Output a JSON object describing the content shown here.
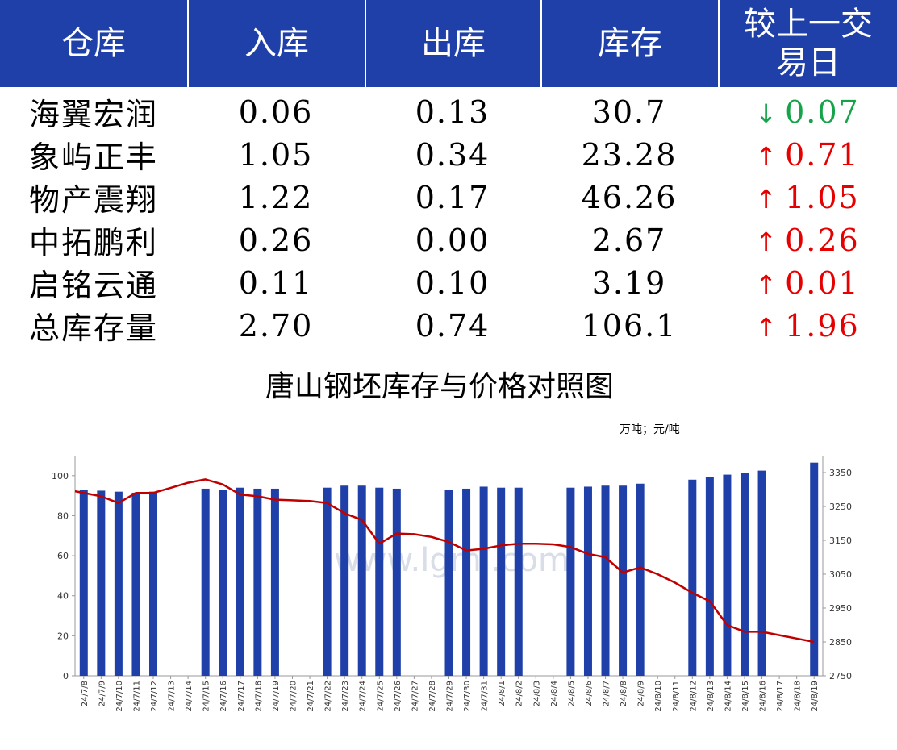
{
  "table": {
    "headers": [
      "仓库",
      "入库",
      "出库",
      "库存",
      "较上一交\n易日"
    ],
    "rows": [
      {
        "name": "海翼宏润",
        "in": "0.06",
        "out": "0.13",
        "stock": "30.7",
        "change": "0.07",
        "dir": "down"
      },
      {
        "name": "象屿正丰",
        "in": "1.05",
        "out": "0.34",
        "stock": "23.28",
        "change": "0.71",
        "dir": "up"
      },
      {
        "name": "物产震翔",
        "in": "1.22",
        "out": "0.17",
        "stock": "46.26",
        "change": "1.05",
        "dir": "up"
      },
      {
        "name": "中拓鹏利",
        "in": "0.26",
        "out": "0.00",
        "stock": "2.67",
        "change": "0.26",
        "dir": "up"
      },
      {
        "name": "启铭云通",
        "in": "0.11",
        "out": "0.10",
        "stock": "3.19",
        "change": "0.01",
        "dir": "up"
      },
      {
        "name": "总库存量",
        "in": "2.70",
        "out": "0.74",
        "stock": "106.1",
        "change": "1.96",
        "dir": "up"
      }
    ],
    "colors": {
      "header_bg": "#1f40a8",
      "up": "#e60000",
      "down": "#16a34a"
    }
  },
  "chart_data": {
    "type": "bar+line",
    "title": "唐山钢坯库存与价格对照图",
    "unit_label": "万吨；元/吨",
    "watermark": "www.lgmi.com",
    "categories": [
      "24/7/8",
      "24/7/9",
      "24/7/10",
      "24/7/11",
      "24/7/12",
      "24/7/13",
      "24/7/14",
      "24/7/15",
      "24/7/16",
      "24/7/17",
      "24/7/18",
      "24/7/19",
      "24/7/20",
      "24/7/21",
      "24/7/22",
      "24/7/23",
      "24/7/24",
      "24/7/25",
      "24/7/26",
      "24/7/27",
      "24/7/28",
      "24/7/29",
      "24/7/30",
      "24/7/31",
      "24/8/1",
      "24/8/2",
      "24/8/3",
      "24/8/4",
      "24/8/5",
      "24/8/6",
      "24/8/7",
      "24/8/8",
      "24/8/9",
      "24/8/10",
      "24/8/11",
      "24/8/12",
      "24/8/13",
      "24/8/14",
      "24/8/15",
      "24/8/16",
      "24/8/17",
      "24/8/18",
      "24/8/19"
    ],
    "series": [
      {
        "type": "bar",
        "axis": "left",
        "color": "#1f40a8",
        "values": [
          93,
          92.5,
          92,
          91.5,
          92,
          null,
          null,
          93.5,
          93,
          94,
          93.5,
          93.5,
          null,
          null,
          94,
          95,
          95,
          94,
          93.5,
          null,
          null,
          93,
          93.5,
          94.5,
          94,
          94,
          null,
          null,
          94,
          94.5,
          95,
          95,
          96,
          null,
          null,
          98,
          99.5,
          100.5,
          101.5,
          102.5,
          null,
          null,
          106.5
        ]
      },
      {
        "type": "line",
        "axis": "right",
        "color": "#c00000",
        "values": [
          3295,
          3280,
          3260,
          3290,
          3290,
          3305,
          3320,
          3330,
          3315,
          3285,
          3280,
          3270,
          3268,
          3266,
          3260,
          3230,
          3210,
          3140,
          3170,
          3168,
          3160,
          3145,
          3120,
          3125,
          3135,
          3140,
          3140,
          3138,
          3130,
          3110,
          3100,
          3055,
          3070,
          3050,
          3025,
          2995,
          2970,
          2900,
          2880,
          2880,
          2870,
          2860,
          2850
        ]
      }
    ],
    "left_axis": {
      "ylim": [
        0,
        110
      ],
      "ticks": [
        0,
        20,
        40,
        60,
        80,
        100
      ]
    },
    "right_axis": {
      "ylim": [
        2750,
        3400
      ],
      "ticks": [
        2750,
        2850,
        2950,
        3050,
        3150,
        3250,
        3350
      ]
    }
  }
}
